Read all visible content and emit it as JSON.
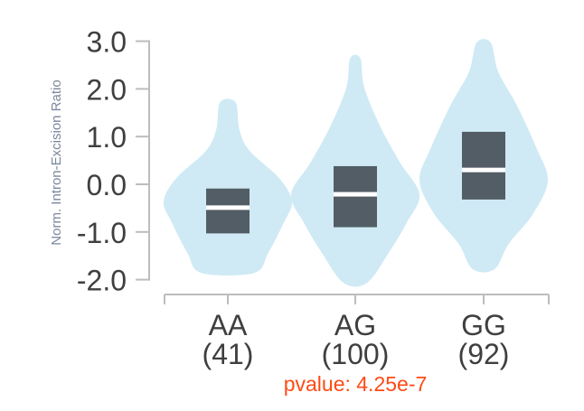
{
  "chart_data": {
    "type": "violin",
    "title": "",
    "xlabel": "",
    "ylabel": "Norm. Intron-Excision Ratio",
    "ylim": [
      -2.0,
      3.0
    ],
    "yticks": [
      "3.0",
      "2.0",
      "1.0",
      "0.0",
      "-1.0",
      "-2.0"
    ],
    "ytick_values": [
      3,
      2,
      1,
      0,
      -1,
      -2
    ],
    "grid": false,
    "categories": [
      {
        "name": "AA",
        "count_label": "(41)",
        "box": {
          "q1": -1.03,
          "median": -0.49,
          "q3": -0.09
        },
        "density": [
          [
            1.72,
            0.12
          ],
          [
            1.15,
            0.18
          ],
          [
            0.7,
            0.34
          ],
          [
            0.13,
            0.8
          ],
          [
            -0.36,
            1.0
          ],
          [
            -0.81,
            0.87
          ],
          [
            -1.44,
            0.63
          ],
          [
            -1.86,
            0.41
          ]
        ]
      },
      {
        "name": "AG",
        "count_label": "(100)",
        "box": {
          "q1": -0.9,
          "median": -0.21,
          "q3": 0.38
        },
        "density": [
          [
            2.64,
            0.08
          ],
          [
            2.03,
            0.14
          ],
          [
            1.21,
            0.39
          ],
          [
            0.45,
            0.7
          ],
          [
            -0.21,
            1.0
          ],
          [
            -0.81,
            0.8
          ],
          [
            -1.44,
            0.52
          ],
          [
            -2.07,
            0.18
          ]
        ]
      },
      {
        "name": "GG",
        "count_label": "(92)",
        "box": {
          "q1": -0.32,
          "median": 0.3,
          "q3": 1.1
        },
        "density": [
          [
            2.97,
            0.11
          ],
          [
            2.35,
            0.23
          ],
          [
            1.65,
            0.52
          ],
          [
            0.77,
            0.82
          ],
          [
            0.08,
            1.0
          ],
          [
            -0.62,
            0.77
          ],
          [
            -1.25,
            0.39
          ],
          [
            -1.78,
            0.17
          ]
        ]
      }
    ],
    "annotation": "pvalue: 4.25e-7",
    "colors": {
      "violin": "#cfeaf5",
      "box": "#535d65",
      "median": "#ffffff",
      "pvalue": "#ff4a14"
    }
  }
}
